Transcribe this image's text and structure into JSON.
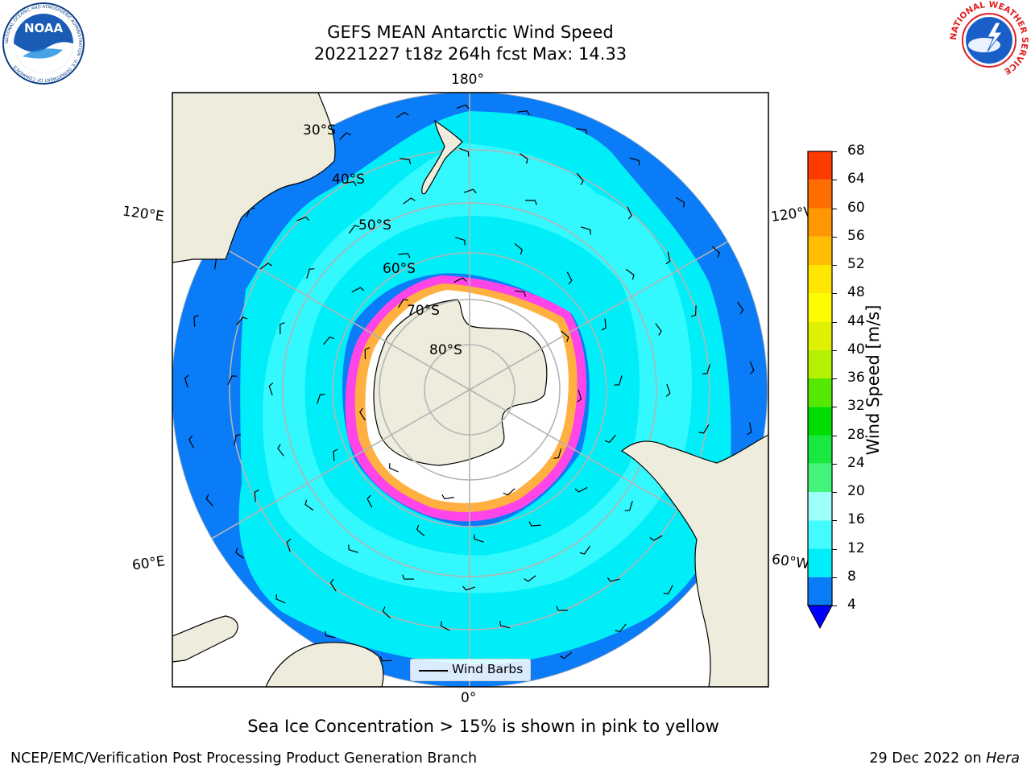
{
  "header": {
    "title_line1": "GEFS MEAN Antarctic Wind Speed",
    "title_line2": "20221227 t18z 264h fcst   Max: 14.33"
  },
  "logos": {
    "left": {
      "icon": "noaa-logo",
      "text": "NOAA",
      "ring_text": "NATIONAL OCEANIC AND ATMOSPHERIC ADMINISTRATION · U.S. DEPARTMENT OF COMMERCE"
    },
    "right": {
      "icon": "nws-logo",
      "ring_text": "NATIONAL WEATHER SERVICE"
    }
  },
  "map": {
    "projection": "south polar stereographic",
    "longitude_labels": {
      "top": "180°",
      "bottom": "0°",
      "upper_left": "120°E",
      "upper_right": "120°W",
      "lower_left": "60°E",
      "lower_right": "60°W"
    },
    "latitude_labels": [
      "30°S",
      "40°S",
      "50°S",
      "60°S",
      "70°S",
      "80°S"
    ],
    "legend": {
      "label": "Wind Barbs"
    },
    "colors": {
      "land": "#eeecdc",
      "ocean_4_8": "#0a7cf7",
      "ocean_8_12": "#00eef8",
      "ocean_12_16": "#44fbff",
      "ice": "#ffffff",
      "ice_edge": [
        "#ff44e8",
        "#ffb040",
        "#f8f000"
      ],
      "grid": "#b4b4b4"
    }
  },
  "colorbar": {
    "label": "Wind Speed [m/s]",
    "ticks": [
      "68",
      "64",
      "60",
      "56",
      "52",
      "48",
      "44",
      "40",
      "36",
      "32",
      "28",
      "24",
      "20",
      "16",
      "12",
      "8",
      "4"
    ],
    "levels": [
      4,
      8,
      12,
      16,
      20,
      24,
      28,
      32,
      36,
      40,
      44,
      48,
      52,
      56,
      60,
      64,
      68
    ],
    "colors": [
      "#0a7cf7",
      "#00eef8",
      "#44fbff",
      "#9dfff8",
      "#44f47a",
      "#18e840",
      "#00dd00",
      "#55e800",
      "#b5f000",
      "#dff000",
      "#fffc00",
      "#ffe600",
      "#ffbf00",
      "#ff9800",
      "#ff6c00",
      "#ff3c00",
      "#ff0000"
    ],
    "under_color": "#0000ff"
  },
  "caption": "Sea Ice Concentration > 15% is shown in pink to yellow",
  "footer": {
    "left": "NCEP/EMC/Verification Post Processing Product Generation Branch",
    "right_prefix": "29 Dec 2022 on ",
    "right_machine": "Hera"
  }
}
